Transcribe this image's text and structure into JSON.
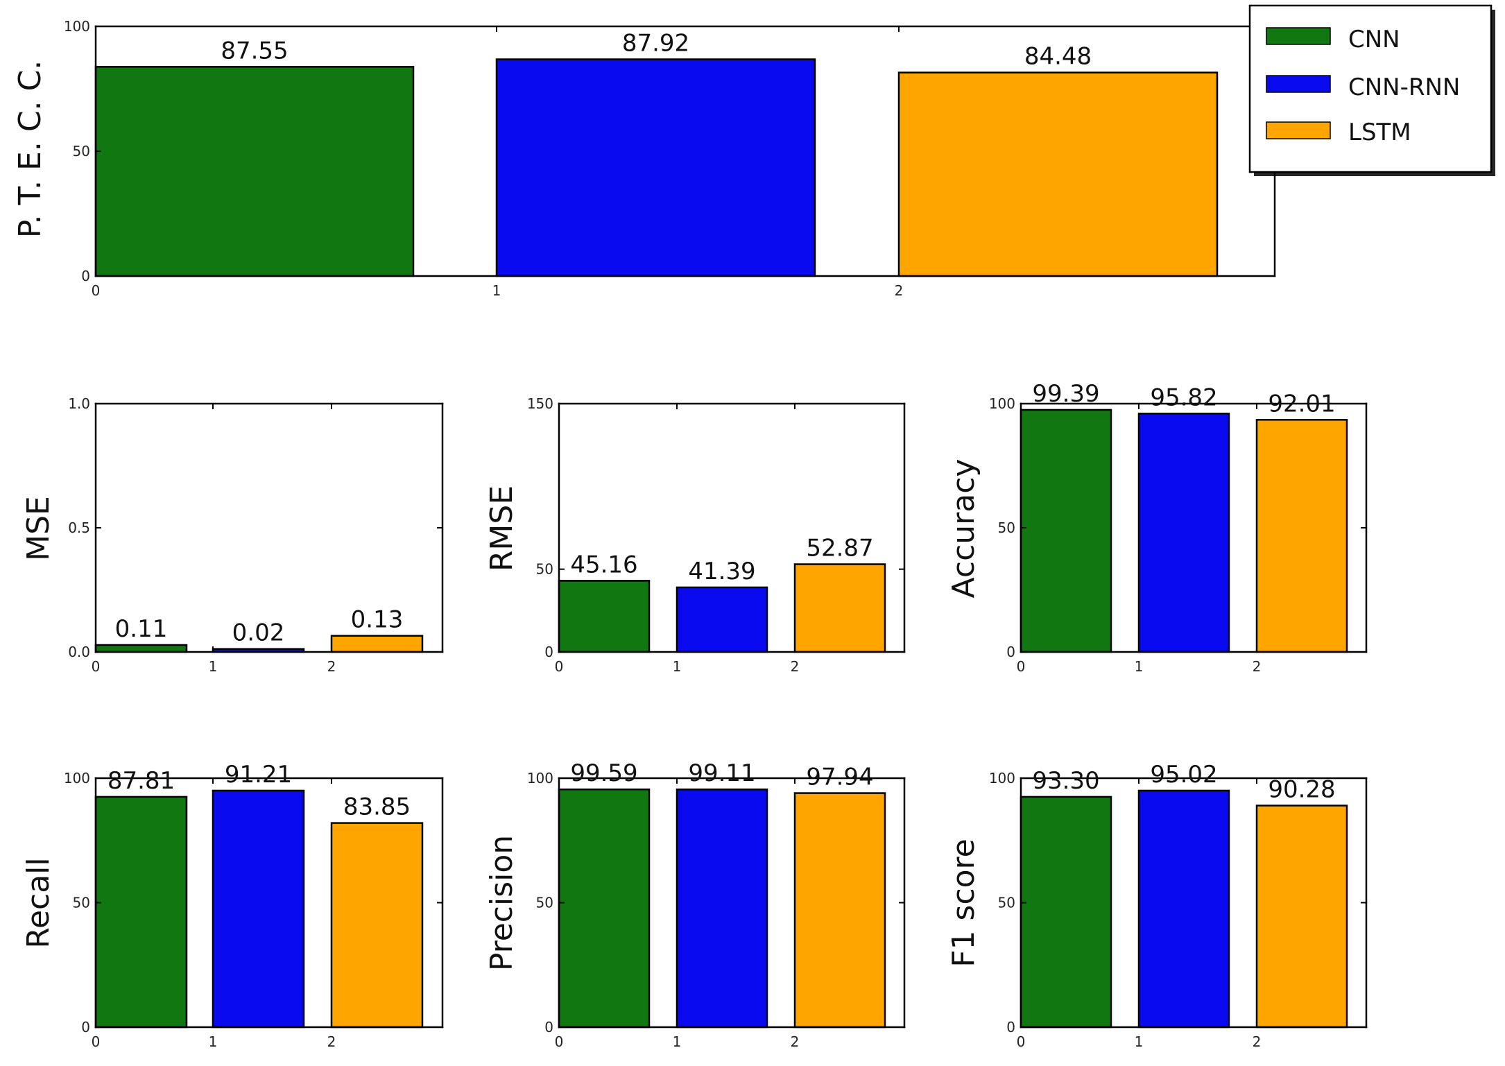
{
  "legend": {
    "items": [
      {
        "label": "CNN",
        "color": "#117711"
      },
      {
        "label": "CNN-RNN",
        "color": "#0a0af0"
      },
      {
        "label": "LSTM",
        "color": "#ffa500"
      }
    ]
  },
  "chart_data": [
    {
      "type": "bar",
      "ylabel": "P. T. E. C. C.",
      "categories": [
        "0",
        "1",
        "2"
      ],
      "values": [
        87.55,
        87.92,
        84.48
      ],
      "value_labels": [
        "87.55",
        "87.92",
        "84.48"
      ],
      "ylim": [
        0,
        100
      ],
      "yticks": [
        "0",
        "50",
        "100"
      ],
      "xticks": [
        "0",
        "1",
        "2"
      ],
      "bar_heights": [
        83.8,
        86.8,
        81.5
      ]
    },
    {
      "type": "bar",
      "ylabel": "MSE",
      "categories": [
        "0",
        "1",
        "2"
      ],
      "values": [
        0.11,
        0.02,
        0.13
      ],
      "value_labels": [
        "0.11",
        "0.02",
        "0.13"
      ],
      "ylim": [
        0,
        1.0
      ],
      "yticks": [
        "0.0",
        "0.5",
        "1.0"
      ],
      "xticks": [
        "0",
        "1",
        "2"
      ],
      "bar_heights": [
        0.028,
        0.012,
        0.065
      ]
    },
    {
      "type": "bar",
      "ylabel": "RMSE",
      "categories": [
        "0",
        "1",
        "2"
      ],
      "values": [
        45.16,
        41.39,
        52.87
      ],
      "value_labels": [
        "45.16",
        "41.39",
        "52.87"
      ],
      "ylim": [
        0,
        150
      ],
      "yticks": [
        "0",
        "50",
        "150"
      ],
      "xticks": [
        "0",
        "1",
        "2"
      ],
      "bar_heights": [
        43,
        39,
        53
      ]
    },
    {
      "type": "bar",
      "ylabel": "Accuracy",
      "categories": [
        "0",
        "1",
        "2"
      ],
      "values": [
        99.39,
        95.82,
        92.01
      ],
      "value_labels": [
        "99.39",
        "95.82",
        "92.01"
      ],
      "ylim": [
        0,
        100
      ],
      "yticks": [
        "0",
        "50",
        "100"
      ],
      "xticks": [
        "0",
        "1",
        "2"
      ],
      "bar_heights": [
        97.5,
        96,
        93.5
      ]
    },
    {
      "type": "bar",
      "ylabel": "Recall",
      "categories": [
        "0",
        "1",
        "2"
      ],
      "values": [
        87.81,
        91.21,
        83.85
      ],
      "value_labels": [
        "87.81",
        "91.21",
        "83.85"
      ],
      "ylim": [
        0,
        100
      ],
      "yticks": [
        "0",
        "50",
        "100"
      ],
      "xticks": [
        "0",
        "1",
        "2"
      ],
      "bar_heights": [
        92.5,
        95,
        82
      ]
    },
    {
      "type": "bar",
      "ylabel": "Precision",
      "categories": [
        "0",
        "1",
        "2"
      ],
      "values": [
        99.59,
        99.11,
        97.94
      ],
      "value_labels": [
        "99.59",
        "99.11",
        "97.94"
      ],
      "ylim": [
        0,
        100
      ],
      "yticks": [
        "0",
        "50",
        "100"
      ],
      "xticks": [
        "0",
        "1",
        "2"
      ],
      "bar_heights": [
        95.5,
        95.5,
        94
      ]
    },
    {
      "type": "bar",
      "ylabel": "F1 score",
      "categories": [
        "0",
        "1",
        "2"
      ],
      "values": [
        93.3,
        95.02,
        90.28
      ],
      "value_labels": [
        "93.30",
        "95.02",
        "90.28"
      ],
      "ylim": [
        0,
        100
      ],
      "yticks": [
        "0",
        "50",
        "100"
      ],
      "xticks": [
        "0",
        "1",
        "2"
      ],
      "bar_heights": [
        92.5,
        95,
        89
      ]
    }
  ]
}
